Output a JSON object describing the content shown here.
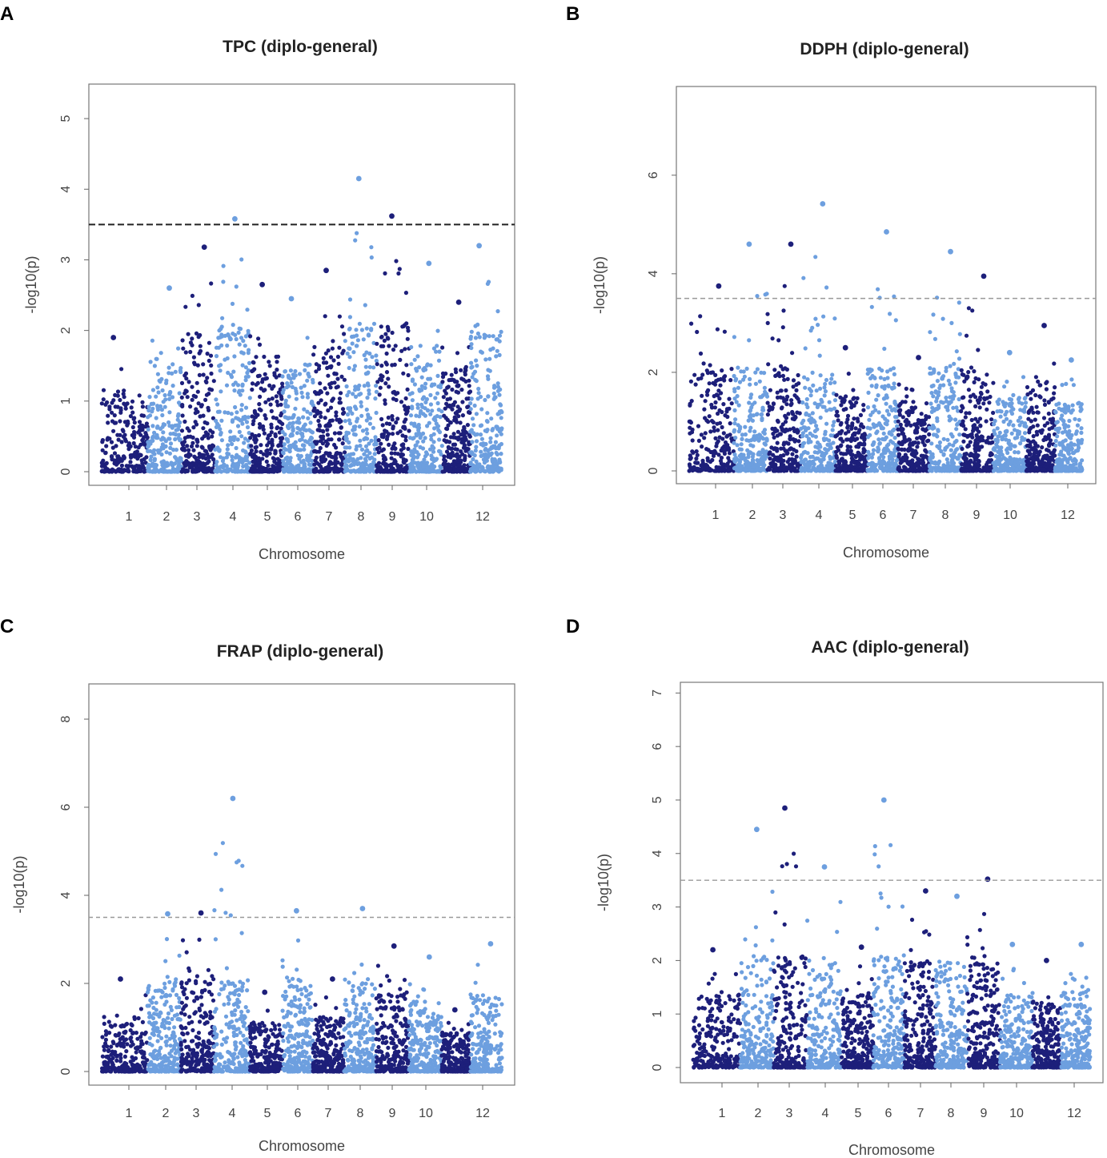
{
  "figure": {
    "colors": {
      "dark": "#1d1f7a",
      "light": "#6d9fdf",
      "frame": "#777777",
      "threshold": "#555555"
    }
  },
  "chart_data": [
    {
      "panel": "A",
      "type": "scatter",
      "title": "TPC (diplo-general)",
      "xlabel": "Chromosome",
      "ylabel": "-log10(p)",
      "ylim": [
        0,
        5.5
      ],
      "yticks": [
        0,
        1,
        2,
        3,
        4,
        5
      ],
      "xticks": [
        "1",
        "2",
        "3",
        "4",
        "5",
        "6",
        "7",
        "8",
        "9",
        "10",
        "12"
      ],
      "threshold": 3.5,
      "peaks": [
        {
          "chromosome": 1,
          "value": 1.9
        },
        {
          "chromosome": 2,
          "value": 2.6
        },
        {
          "chromosome": 3,
          "value": 3.18
        },
        {
          "chromosome": 4,
          "value": 3.58
        },
        {
          "chromosome": 5,
          "value": 2.65
        },
        {
          "chromosome": 6,
          "value": 2.45
        },
        {
          "chromosome": 7,
          "value": 2.85
        },
        {
          "chromosome": 8,
          "value": 4.15
        },
        {
          "chromosome": 9,
          "value": 3.62
        },
        {
          "chromosome": 10,
          "value": 2.95
        },
        {
          "chromosome": 11,
          "value": 2.4
        },
        {
          "chromosome": 12,
          "value": 3.2
        }
      ]
    },
    {
      "panel": "B",
      "type": "scatter",
      "title": "DDPH (diplo-general)",
      "xlabel": "Chromosome",
      "ylabel": "-log10(p)",
      "ylim": [
        0,
        7.8
      ],
      "yticks": [
        0,
        2,
        4,
        6
      ],
      "xticks": [
        "1",
        "2",
        "3",
        "4",
        "5",
        "6",
        "7",
        "8",
        "9",
        "10",
        "12"
      ],
      "threshold": 3.5,
      "peaks": [
        {
          "chromosome": 1,
          "value": 3.75
        },
        {
          "chromosome": 2,
          "value": 4.6
        },
        {
          "chromosome": 3,
          "value": 4.6
        },
        {
          "chromosome": 4,
          "value": 5.42
        },
        {
          "chromosome": 5,
          "value": 2.5
        },
        {
          "chromosome": 6,
          "value": 4.85
        },
        {
          "chromosome": 7,
          "value": 2.3
        },
        {
          "chromosome": 8,
          "value": 4.45
        },
        {
          "chromosome": 9,
          "value": 3.95
        },
        {
          "chromosome": 10,
          "value": 2.4
        },
        {
          "chromosome": 11,
          "value": 2.95
        },
        {
          "chromosome": 12,
          "value": 2.25
        }
      ]
    },
    {
      "panel": "C",
      "type": "scatter",
      "title": "FRAP (diplo-general)",
      "xlabel": "Chromosome",
      "ylabel": "-log10(p)",
      "ylim": [
        0,
        9
      ],
      "yticks": [
        0,
        2,
        4,
        6,
        8
      ],
      "xticks": [
        "1",
        "2",
        "3",
        "4",
        "5",
        "6",
        "7",
        "8",
        "9",
        "10",
        "12"
      ],
      "threshold": 3.5,
      "peaks": [
        {
          "chromosome": 1,
          "value": 2.1
        },
        {
          "chromosome": 2,
          "value": 3.58
        },
        {
          "chromosome": 3,
          "value": 3.6
        },
        {
          "chromosome": 4,
          "value": 6.2
        },
        {
          "chromosome": 5,
          "value": 1.8
        },
        {
          "chromosome": 6,
          "value": 3.65
        },
        {
          "chromosome": 7,
          "value": 2.1
        },
        {
          "chromosome": 8,
          "value": 3.7
        },
        {
          "chromosome": 9,
          "value": 2.85
        },
        {
          "chromosome": 10,
          "value": 2.6
        },
        {
          "chromosome": 11,
          "value": 1.4
        },
        {
          "chromosome": 12,
          "value": 2.9
        }
      ]
    },
    {
      "panel": "D",
      "type": "scatter",
      "title": "AAC (diplo-general)",
      "xlabel": "Chromosome",
      "ylabel": "-log10(p)",
      "ylim": [
        0,
        7.2
      ],
      "yticks": [
        0,
        1,
        2,
        3,
        4,
        5,
        6,
        7
      ],
      "xticks": [
        "1",
        "2",
        "3",
        "4",
        "5",
        "6",
        "7",
        "8",
        "9",
        "10",
        "12"
      ],
      "threshold": 3.5,
      "peaks": [
        {
          "chromosome": 1,
          "value": 2.2
        },
        {
          "chromosome": 2,
          "value": 4.45
        },
        {
          "chromosome": 3,
          "value": 4.85
        },
        {
          "chromosome": 4,
          "value": 3.75
        },
        {
          "chromosome": 5,
          "value": 2.25
        },
        {
          "chromosome": 6,
          "value": 5.0
        },
        {
          "chromosome": 7,
          "value": 3.3
        },
        {
          "chromosome": 8,
          "value": 3.2
        },
        {
          "chromosome": 9,
          "value": 3.52
        },
        {
          "chromosome": 10,
          "value": 2.3
        },
        {
          "chromosome": 11,
          "value": 2.0
        },
        {
          "chromosome": 12,
          "value": 2.3
        }
      ]
    }
  ]
}
